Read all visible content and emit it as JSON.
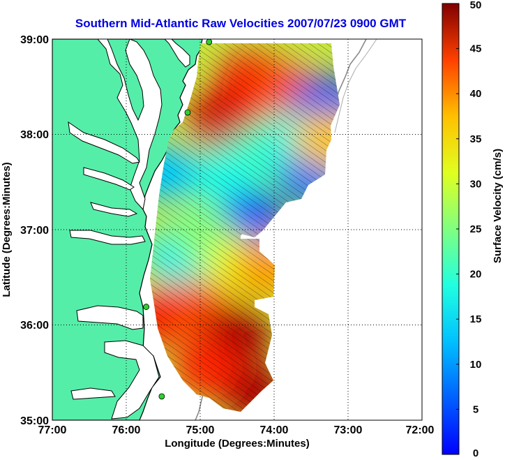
{
  "title": "Southern Mid-Atlantic Raw Velocities 2007/07/23 0900 GMT",
  "xlabel": "Longitude (Degrees:Minutes)",
  "ylabel": "Latitude (Degrees:Minutes)",
  "x_ticks": [
    "77:00",
    "76:00",
    "75:00",
    "74:00",
    "73:00",
    "72:00"
  ],
  "y_ticks": [
    "39:00",
    "38:00",
    "37:00",
    "36:00",
    "35:00"
  ],
  "colorbar": {
    "label": "Surface Velocity (cm/s)",
    "ticks": [
      "0",
      "5",
      "10",
      "15",
      "20",
      "25",
      "30",
      "35",
      "40",
      "45",
      "50"
    ],
    "range": [
      0,
      50
    ],
    "colormap": "jet"
  },
  "colors": {
    "title": "#0000e0",
    "land": "#55eea8",
    "water": "#ffffff",
    "coastline": "#000000",
    "bathymetry": "#888888",
    "station": "#2fd02f",
    "arrows": "#000000"
  },
  "map_extent": {
    "lon": [
      -77,
      -72
    ],
    "lat": [
      35,
      39
    ]
  },
  "stations": [
    {
      "lon": -74.88,
      "lat": 38.97
    },
    {
      "lon": -75.17,
      "lat": 38.23
    },
    {
      "lon": -75.73,
      "lat": 36.19
    },
    {
      "lon": -75.52,
      "lat": 35.25
    }
  ],
  "coverage_zones": [
    {
      "lon": -74.7,
      "lat": 38.15,
      "speed": 46
    },
    {
      "lon": -74.3,
      "lat": 38.55,
      "speed": 44
    },
    {
      "lon": -73.9,
      "lat": 38.45,
      "speed": 40
    },
    {
      "lon": -74.25,
      "lat": 37.75,
      "speed": 22
    },
    {
      "lon": -73.75,
      "lat": 37.95,
      "speed": 20
    },
    {
      "lon": -74.7,
      "lat": 37.55,
      "speed": 20
    },
    {
      "lon": -73.27,
      "lat": 38.32,
      "speed": 10
    },
    {
      "lon": -73.5,
      "lat": 37.55,
      "speed": 12
    },
    {
      "lon": -75.5,
      "lat": 37.6,
      "speed": 16
    },
    {
      "lon": -74.3,
      "lat": 37.1,
      "speed": 10
    },
    {
      "lon": -75.3,
      "lat": 36.75,
      "speed": 18
    },
    {
      "lon": -75.0,
      "lat": 36.95,
      "speed": 25
    },
    {
      "lon": -74.5,
      "lat": 36.65,
      "speed": 30
    },
    {
      "lon": -74.1,
      "lat": 36.6,
      "speed": 36
    },
    {
      "lon": -75.5,
      "lat": 36.1,
      "speed": 44
    },
    {
      "lon": -75.0,
      "lat": 36.15,
      "speed": 40
    },
    {
      "lon": -74.5,
      "lat": 35.9,
      "speed": 48
    },
    {
      "lon": -74.3,
      "lat": 35.3,
      "speed": 48
    },
    {
      "lon": -74.9,
      "lat": 35.55,
      "speed": 42
    },
    {
      "lon": -73.3,
      "lat": 37.95,
      "speed": 34
    }
  ]
}
